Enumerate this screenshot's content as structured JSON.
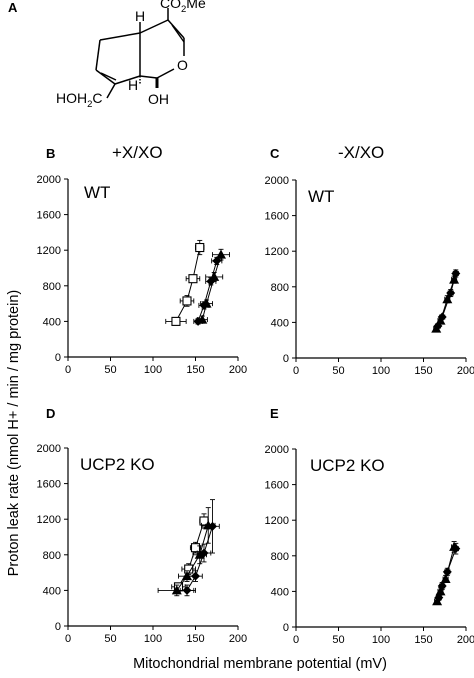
{
  "figure": {
    "panel_a": {
      "letter": "A",
      "labels": {
        "h_top": "H",
        "ester": "CO",
        "ester_sub": "2",
        "ester_tail": "Me",
        "ring_o": "O",
        "h_bottom": "H",
        "oh": "OH",
        "hydroxymethyl": "HOH",
        "hydroxymethyl_sub": "2",
        "hydroxymethyl_tail": "C"
      }
    },
    "y_axis_label": "Proton leak rate (nmol H+ / min / mg protein)",
    "x_axis_label": "Mitochondrial membrane potential (mV)",
    "conditions": [
      "+X/XO",
      "-X/XO"
    ]
  },
  "chart_data": [
    {
      "panel": "B",
      "type": "scatter",
      "genotype": "WT",
      "condition": "+X/XO",
      "xlim": [
        0,
        200
      ],
      "ylim": [
        0,
        2000
      ],
      "xticks": [
        0,
        50,
        100,
        150,
        200
      ],
      "yticks": [
        0,
        400,
        800,
        1200,
        1600,
        2000
      ],
      "series": [
        {
          "marker": "open-square",
          "x": [
            127,
            140,
            147,
            155
          ],
          "y": [
            400,
            630,
            880,
            1230
          ],
          "xerr": [
            12,
            8,
            8,
            5
          ],
          "yerr": [
            0,
            60,
            0,
            80
          ]
        },
        {
          "marker": "filled-circle",
          "x": [
            153,
            160,
            168,
            175
          ],
          "y": [
            400,
            580,
            850,
            1080
          ],
          "xerr": [
            5,
            6,
            6,
            6
          ],
          "yerr": [
            30,
            40,
            40,
            40
          ]
        },
        {
          "marker": "filled-triangle",
          "x": [
            158,
            163,
            172,
            180
          ],
          "y": [
            420,
            600,
            900,
            1150
          ],
          "xerr": [
            6,
            7,
            10,
            10
          ],
          "yerr": [
            40,
            40,
            50,
            60
          ]
        }
      ]
    },
    {
      "panel": "C",
      "type": "scatter",
      "genotype": "WT",
      "condition": "-X/XO",
      "xlim": [
        0,
        200
      ],
      "ylim": [
        0,
        2000
      ],
      "xticks": [
        0,
        50,
        100,
        150,
        200
      ],
      "yticks": [
        0,
        400,
        800,
        1200,
        1600,
        2000
      ],
      "series": [
        {
          "marker": "filled-circle",
          "x": [
            167,
            172,
            182,
            188
          ],
          "y": [
            360,
            460,
            730,
            950
          ],
          "xerr": [
            3,
            3,
            3,
            3
          ],
          "yerr": [
            20,
            20,
            40,
            40
          ]
        },
        {
          "marker": "filled-triangle",
          "x": [
            165,
            170,
            178,
            186
          ],
          "y": [
            330,
            420,
            660,
            880
          ],
          "xerr": [
            3,
            3,
            3,
            3
          ],
          "yerr": [
            20,
            20,
            40,
            40
          ]
        }
      ]
    },
    {
      "panel": "D",
      "type": "scatter",
      "genotype": "UCP2 KO",
      "condition": "+X/XO",
      "xlim": [
        0,
        200
      ],
      "ylim": [
        0,
        2000
      ],
      "xticks": [
        0,
        50,
        100,
        150,
        200
      ],
      "yticks": [
        0,
        400,
        800,
        1200,
        1600,
        2000
      ],
      "series": [
        {
          "marker": "open-square",
          "x": [
            130,
            142,
            150,
            160
          ],
          "y": [
            440,
            640,
            880,
            1180
          ],
          "xerr": [
            8,
            8,
            6,
            5
          ],
          "yerr": [
            40,
            60,
            60,
            80
          ]
        },
        {
          "marker": "filled-circle",
          "x": [
            140,
            150,
            160,
            170
          ],
          "y": [
            400,
            560,
            820,
            1120
          ],
          "xerr": [
            8,
            8,
            8,
            8
          ],
          "yerr": [
            60,
            60,
            100,
            300
          ]
        },
        {
          "marker": "filled-triangle",
          "x": [
            128,
            140,
            155,
            165
          ],
          "y": [
            400,
            560,
            800,
            1130
          ],
          "xerr": [
            22,
            10,
            8,
            8
          ],
          "yerr": [
            60,
            60,
            100,
            200
          ]
        }
      ]
    },
    {
      "panel": "E",
      "type": "scatter",
      "genotype": "UCP2 KO",
      "condition": "-X/XO",
      "xlim": [
        0,
        200
      ],
      "ylim": [
        0,
        2000
      ],
      "xticks": [
        0,
        50,
        100,
        150,
        200
      ],
      "yticks": [
        0,
        400,
        800,
        1200,
        1600,
        2000
      ],
      "series": [
        {
          "marker": "filled-circle",
          "x": [
            168,
            172,
            178,
            188
          ],
          "y": [
            330,
            460,
            620,
            880
          ],
          "xerr": [
            3,
            3,
            3,
            3
          ],
          "yerr": [
            30,
            40,
            40,
            60
          ]
        },
        {
          "marker": "filled-triangle",
          "x": [
            166,
            170,
            176,
            186
          ],
          "y": [
            290,
            400,
            540,
            900
          ],
          "xerr": [
            3,
            3,
            3,
            3
          ],
          "yerr": [
            30,
            40,
            40,
            60
          ]
        }
      ]
    }
  ]
}
